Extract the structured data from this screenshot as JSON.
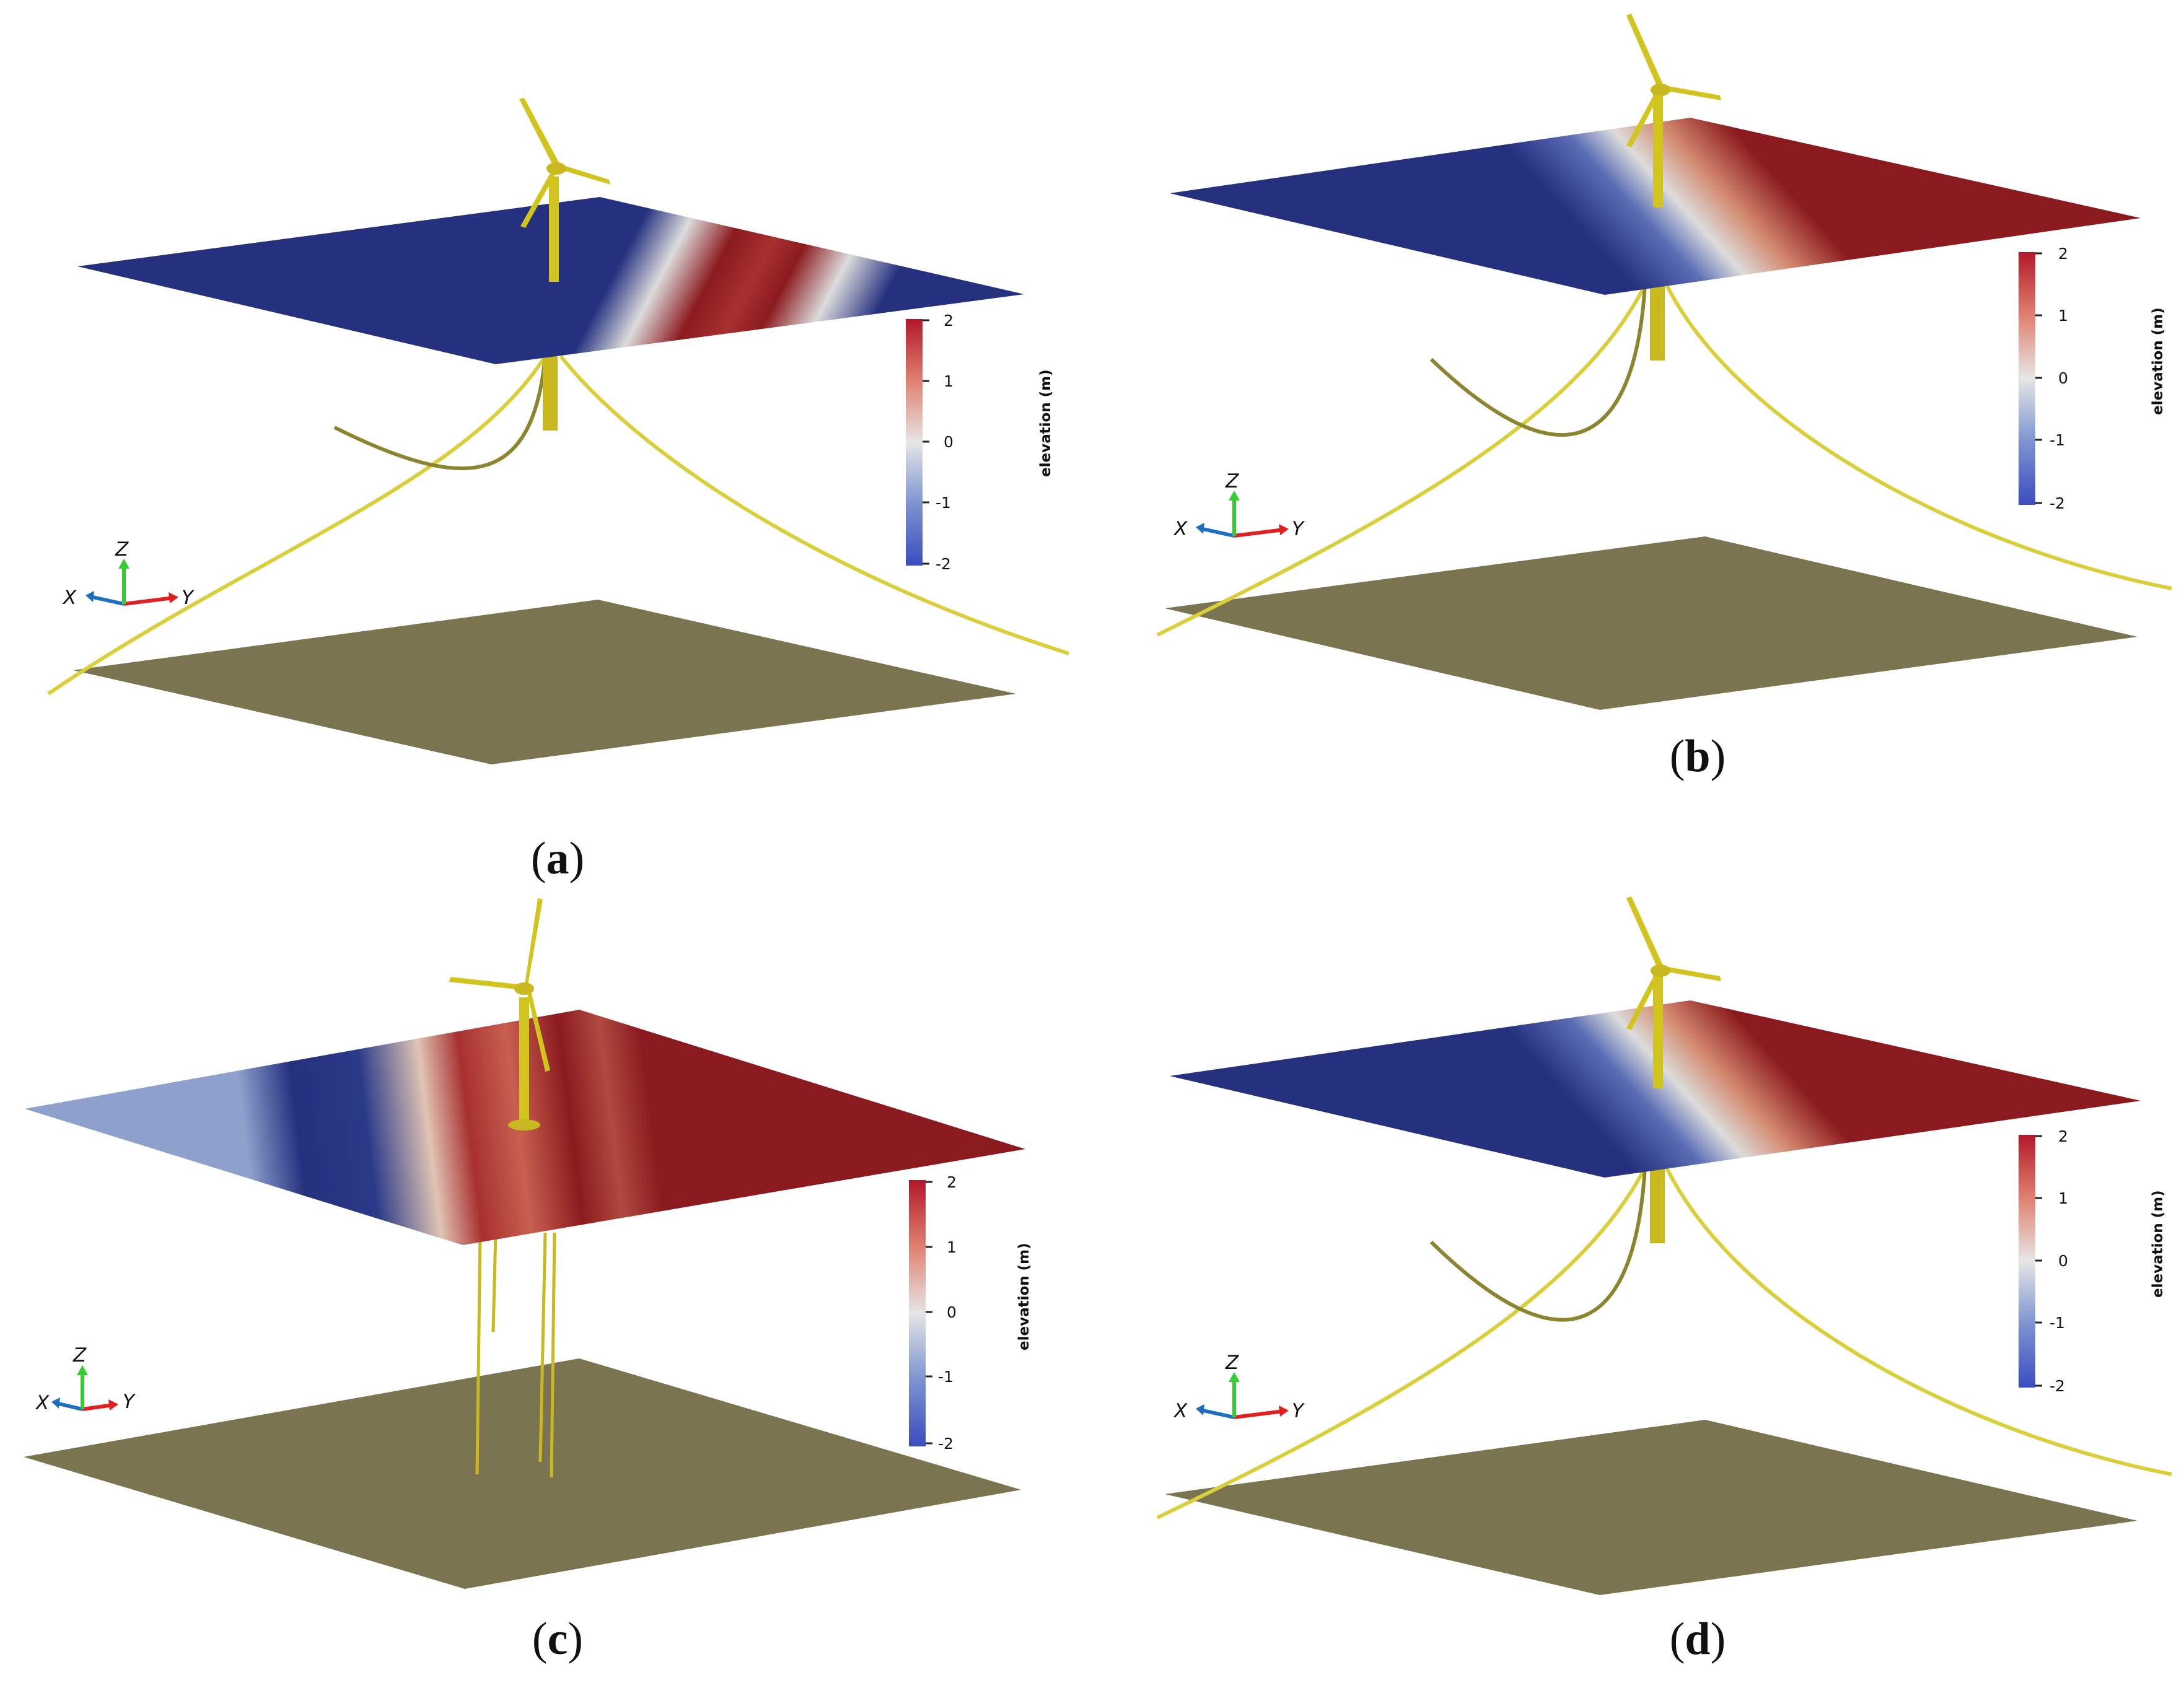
{
  "panels": [
    {
      "id": "a",
      "caption": {
        "open": "(",
        "letter": "a",
        "close": ")"
      },
      "colorbar": {
        "title": "elevation (m)",
        "ticks": [
          "2",
          "1",
          "0",
          "-1",
          "-2"
        ]
      },
      "axes": {
        "x": "X",
        "y": "Y",
        "z": "Z"
      },
      "platform": "floating spar with three mooring lines"
    },
    {
      "id": "b",
      "caption": {
        "open": "(",
        "letter": "b",
        "close": ")"
      },
      "colorbar": {
        "title": "elevation (m)",
        "ticks": [
          "2",
          "1",
          "0",
          "-1",
          "-2"
        ]
      },
      "axes": {
        "x": "X",
        "y": "Y",
        "z": "Z"
      },
      "platform": "floating spar with three mooring lines"
    },
    {
      "id": "c",
      "caption": {
        "open": "(",
        "letter": "c",
        "close": ")"
      },
      "colorbar": {
        "title": "elevation (m)",
        "ticks": [
          "2",
          "1",
          "0",
          "-1",
          "-2"
        ]
      },
      "axes": {
        "x": "X",
        "y": "Y",
        "z": "Z"
      },
      "platform": "fixed foundation with seabed legs"
    },
    {
      "id": "d",
      "caption": {
        "open": "(",
        "letter": "d",
        "close": ")"
      },
      "colorbar": {
        "title": "elevation (m)",
        "ticks": [
          "2",
          "1",
          "0",
          "-1",
          "-2"
        ]
      },
      "axes": {
        "x": "X",
        "y": "Y",
        "z": "Z"
      },
      "platform": "floating spar with three mooring lines"
    }
  ],
  "colors": {
    "elevation_high": "#8b1a1f",
    "elevation_mid": "#dcdcdc",
    "elevation_low": "#25307f",
    "seabed": "#7a7550",
    "turbine": "#d2c41e",
    "mooring": "#d9cf3a",
    "axis_x": "#1f6fc0",
    "axis_y": "#e02020",
    "axis_z": "#33cc33"
  },
  "icons": [
    "wind-turbine-icon",
    "axis-triad-icon"
  ]
}
